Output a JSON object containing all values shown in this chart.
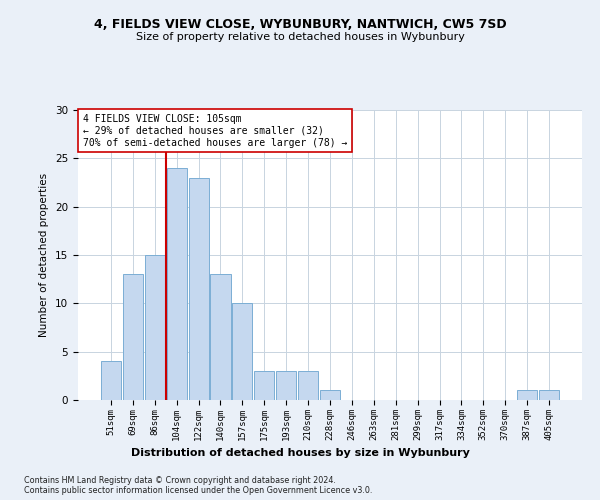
{
  "title": "4, FIELDS VIEW CLOSE, WYBUNBURY, NANTWICH, CW5 7SD",
  "subtitle": "Size of property relative to detached houses in Wybunbury",
  "xlabel": "Distribution of detached houses by size in Wybunbury",
  "ylabel": "Number of detached properties",
  "bar_labels": [
    "51sqm",
    "69sqm",
    "86sqm",
    "104sqm",
    "122sqm",
    "140sqm",
    "157sqm",
    "175sqm",
    "193sqm",
    "210sqm",
    "228sqm",
    "246sqm",
    "263sqm",
    "281sqm",
    "299sqm",
    "317sqm",
    "334sqm",
    "352sqm",
    "370sqm",
    "387sqm",
    "405sqm"
  ],
  "bar_values": [
    4,
    13,
    15,
    24,
    23,
    13,
    10,
    3,
    3,
    3,
    1,
    0,
    0,
    0,
    0,
    0,
    0,
    0,
    0,
    1,
    1
  ],
  "bar_color": "#c5d8ef",
  "bar_edge_color": "#7baed4",
  "highlight_bar_index": 3,
  "highlight_color": "#cc0000",
  "ylim": [
    0,
    30
  ],
  "yticks": [
    0,
    5,
    10,
    15,
    20,
    25,
    30
  ],
  "annotation_lines": [
    "4 FIELDS VIEW CLOSE: 105sqm",
    "← 29% of detached houses are smaller (32)",
    "70% of semi-detached houses are larger (78) →"
  ],
  "footnote1": "Contains HM Land Registry data © Crown copyright and database right 2024.",
  "footnote2": "Contains public sector information licensed under the Open Government Licence v3.0.",
  "bg_color": "#eaf0f8",
  "plot_bg_color": "#ffffff",
  "grid_color": "#c8d4e0"
}
